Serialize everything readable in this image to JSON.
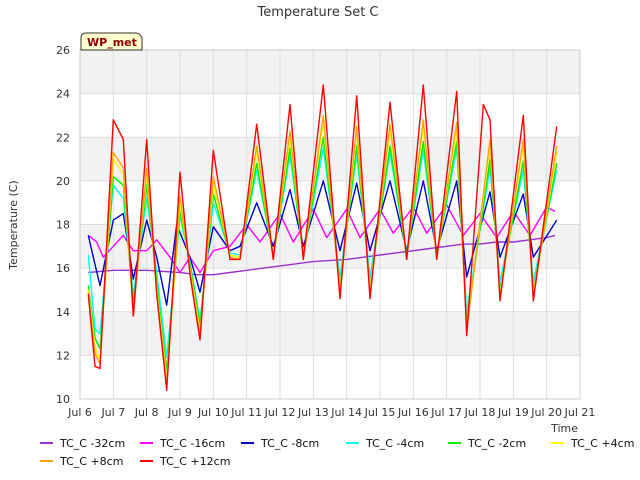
{
  "chart_data": {
    "type": "line",
    "title": "Temperature Set C",
    "xlabel": "Time",
    "ylabel": "Temperature (C)",
    "annotation": "WP_met",
    "xlim": [
      6,
      21
    ],
    "ylim": [
      10,
      26
    ],
    "x_ticks": [
      {
        "value": 6,
        "label": "Jul 6"
      },
      {
        "value": 7,
        "label": "Jul 7"
      },
      {
        "value": 8,
        "label": "Jul 8"
      },
      {
        "value": 9,
        "label": "Jul 9"
      },
      {
        "value": 10,
        "label": "Jul 10"
      },
      {
        "value": 11,
        "label": "Jul 11"
      },
      {
        "value": 12,
        "label": "Jul 12"
      },
      {
        "value": 13,
        "label": "Jul 13"
      },
      {
        "value": 14,
        "label": "Jul 14"
      },
      {
        "value": 15,
        "label": "Jul 15"
      },
      {
        "value": 16,
        "label": "Jul 16"
      },
      {
        "value": 17,
        "label": "Jul 17"
      },
      {
        "value": 18,
        "label": "Jul 18"
      },
      {
        "value": 19,
        "label": "Jul 19"
      },
      {
        "value": 20,
        "label": "Jul 20"
      },
      {
        "value": 21,
        "label": "Jul 21"
      }
    ],
    "y_ticks": [
      10,
      12,
      14,
      16,
      18,
      20,
      22,
      24,
      26
    ],
    "grid": true,
    "legend_position": "bottom",
    "series": [
      {
        "name": "TC_C -32cm",
        "color": "#9932cc",
        "x": [
          6.25,
          7,
          8,
          9,
          9.5,
          10,
          10.5,
          11,
          12,
          13,
          14,
          15,
          16,
          16.5,
          17,
          17.5,
          18,
          18.5,
          19,
          19.5,
          20,
          20.25
        ],
        "y": [
          15.8,
          15.9,
          15.9,
          15.8,
          15.7,
          15.7,
          15.8,
          15.9,
          16.1,
          16.3,
          16.4,
          16.6,
          16.8,
          16.9,
          17.0,
          17.1,
          17.1,
          17.2,
          17.2,
          17.3,
          17.4,
          17.5
        ]
      },
      {
        "name": "TC_C -16cm",
        "color": "#ff00ff",
        "x": [
          6.25,
          6.5,
          6.7,
          7.0,
          7.3,
          7.6,
          8.0,
          8.3,
          8.7,
          9.0,
          9.3,
          9.6,
          10.0,
          10.5,
          11.0,
          11.4,
          12.0,
          12.4,
          13.0,
          13.4,
          14.0,
          14.4,
          15.0,
          15.4,
          16.0,
          16.4,
          17.0,
          17.5,
          18.0,
          18.5,
          19.0,
          19.5,
          20.0,
          20.25
        ],
        "y": [
          17.5,
          17.2,
          16.5,
          17.0,
          17.5,
          16.8,
          16.8,
          17.3,
          16.5,
          15.8,
          16.5,
          15.8,
          16.8,
          17.0,
          18.0,
          17.2,
          18.5,
          17.2,
          18.7,
          17.4,
          18.7,
          17.4,
          18.7,
          17.6,
          18.8,
          17.6,
          18.9,
          17.5,
          18.5,
          17.4,
          18.6,
          17.5,
          18.8,
          18.6
        ]
      },
      {
        "name": "TC_C -8cm",
        "color": "#0000cd",
        "x": [
          6.25,
          6.4,
          6.6,
          7.0,
          7.3,
          7.6,
          8.0,
          8.3,
          8.6,
          8.9,
          9.3,
          9.6,
          10.0,
          10.5,
          10.8,
          11.3,
          11.8,
          12.3,
          12.7,
          13.3,
          13.8,
          14.3,
          14.7,
          15.3,
          15.8,
          16.3,
          16.7,
          17.3,
          17.6,
          18.3,
          18.6,
          19.3,
          19.6,
          20.3
        ],
        "y": [
          17.5,
          16.5,
          15.2,
          18.2,
          18.5,
          15.5,
          18.2,
          16.5,
          14.3,
          18.0,
          16.5,
          14.9,
          17.9,
          16.8,
          17.0,
          19.0,
          17.0,
          19.6,
          17.0,
          20.0,
          16.8,
          19.9,
          16.8,
          20.0,
          16.8,
          20.0,
          16.8,
          20.0,
          15.6,
          19.5,
          16.5,
          19.4,
          16.5,
          18.2
        ]
      },
      {
        "name": "TC_C -4cm",
        "color": "#00ffff",
        "x": [
          6.25,
          6.45,
          6.6,
          7.0,
          7.3,
          7.6,
          8.0,
          8.3,
          8.6,
          9.0,
          9.3,
          9.6,
          10.0,
          10.5,
          10.8,
          11.3,
          11.8,
          12.3,
          12.7,
          13.3,
          13.8,
          14.3,
          14.7,
          15.3,
          15.8,
          16.3,
          16.7,
          17.3,
          17.6,
          18.3,
          18.6,
          19.3,
          19.6,
          20.3
        ],
        "y": [
          16.6,
          13.2,
          13.0,
          19.8,
          19.2,
          14.8,
          19.2,
          15.8,
          11.9,
          18.4,
          16.3,
          13.6,
          19.0,
          16.7,
          16.6,
          20.5,
          16.6,
          21.2,
          16.6,
          21.5,
          15.6,
          21.2,
          15.6,
          21.3,
          16.6,
          21.4,
          16.6,
          21.5,
          14.0,
          20.6,
          15.4,
          20.5,
          15.4,
          20.5
        ]
      },
      {
        "name": "TC_C -2cm",
        "color": "#00ee00",
        "x": [
          6.25,
          6.45,
          6.6,
          7.0,
          7.3,
          7.6,
          8.0,
          8.3,
          8.6,
          9.0,
          9.3,
          9.6,
          10.0,
          10.5,
          10.8,
          11.3,
          11.8,
          12.3,
          12.7,
          13.3,
          13.8,
          14.3,
          14.7,
          15.3,
          15.8,
          16.3,
          16.7,
          17.3,
          17.6,
          18.3,
          18.6,
          19.3,
          19.6,
          20.3
        ],
        "y": [
          15.2,
          12.8,
          12.3,
          20.2,
          19.8,
          14.3,
          19.8,
          15.4,
          11.3,
          18.6,
          16.2,
          13.4,
          19.4,
          16.6,
          16.5,
          20.8,
          16.5,
          21.5,
          16.5,
          22.0,
          15.2,
          21.6,
          15.2,
          21.6,
          16.5,
          21.8,
          16.5,
          21.8,
          13.5,
          21.0,
          15.0,
          20.9,
          15.0,
          20.8
        ]
      },
      {
        "name": "TC_C +4cm",
        "color": "#ffff00",
        "x": [
          6.25,
          6.45,
          6.6,
          7.0,
          7.3,
          7.6,
          8.0,
          8.3,
          8.6,
          9.0,
          9.3,
          9.6,
          10.0,
          10.5,
          10.8,
          11.3,
          11.8,
          12.3,
          12.7,
          13.3,
          13.8,
          14.3,
          14.7,
          15.3,
          15.8,
          16.3,
          16.7,
          17.3,
          17.6,
          18.3,
          18.6,
          19.3,
          19.6,
          20.3
        ],
        "y": [
          15.0,
          12.4,
          11.8,
          21.0,
          20.3,
          14.0,
          20.3,
          15.1,
          10.9,
          19.0,
          16.0,
          13.1,
          19.8,
          16.6,
          16.5,
          21.3,
          16.5,
          22.0,
          16.5,
          22.7,
          15.0,
          22.2,
          15.0,
          22.3,
          16.5,
          22.5,
          16.5,
          22.4,
          13.3,
          21.6,
          14.8,
          21.6,
          14.8,
          21.3
        ]
      },
      {
        "name": "TC_C +8cm",
        "color": "#ffa500",
        "x": [
          6.25,
          6.45,
          6.6,
          7.0,
          7.3,
          7.6,
          8.0,
          8.3,
          8.6,
          9.0,
          9.3,
          9.6,
          10.0,
          10.5,
          10.8,
          11.3,
          11.8,
          12.3,
          12.7,
          13.3,
          13.8,
          14.3,
          14.7,
          15.3,
          15.8,
          16.3,
          16.7,
          17.3,
          17.6,
          18.3,
          18.6,
          19.3,
          19.6,
          20.3
        ],
        "y": [
          14.9,
          12.1,
          11.6,
          21.3,
          20.6,
          13.8,
          20.6,
          14.9,
          10.7,
          19.3,
          15.9,
          12.9,
          20.2,
          16.5,
          16.4,
          21.6,
          16.4,
          22.3,
          16.4,
          23.0,
          14.8,
          22.5,
          14.8,
          22.6,
          16.4,
          22.8,
          16.4,
          22.7,
          13.1,
          21.9,
          14.6,
          21.9,
          14.6,
          21.6
        ]
      },
      {
        "name": "TC_C +12cm",
        "color": "#ff0000",
        "x": [
          6.25,
          6.45,
          6.6,
          7.0,
          7.3,
          7.6,
          8.0,
          8.3,
          8.6,
          9.0,
          9.3,
          9.6,
          10.0,
          10.5,
          10.8,
          11.3,
          11.8,
          12.3,
          12.7,
          13.3,
          13.8,
          14.3,
          14.7,
          15.3,
          15.8,
          16.3,
          16.7,
          17.3,
          17.6,
          18.1,
          18.3,
          18.6,
          19.3,
          19.6,
          20.3
        ],
        "y": [
          14.8,
          11.5,
          11.4,
          22.8,
          21.9,
          13.8,
          21.9,
          14.8,
          10.4,
          20.4,
          15.7,
          12.7,
          21.4,
          16.4,
          16.4,
          22.6,
          16.4,
          23.5,
          16.4,
          24.4,
          14.6,
          23.9,
          14.6,
          23.6,
          16.4,
          24.4,
          16.4,
          24.1,
          12.9,
          23.5,
          22.8,
          14.5,
          23.0,
          14.5,
          22.5
        ]
      }
    ]
  }
}
